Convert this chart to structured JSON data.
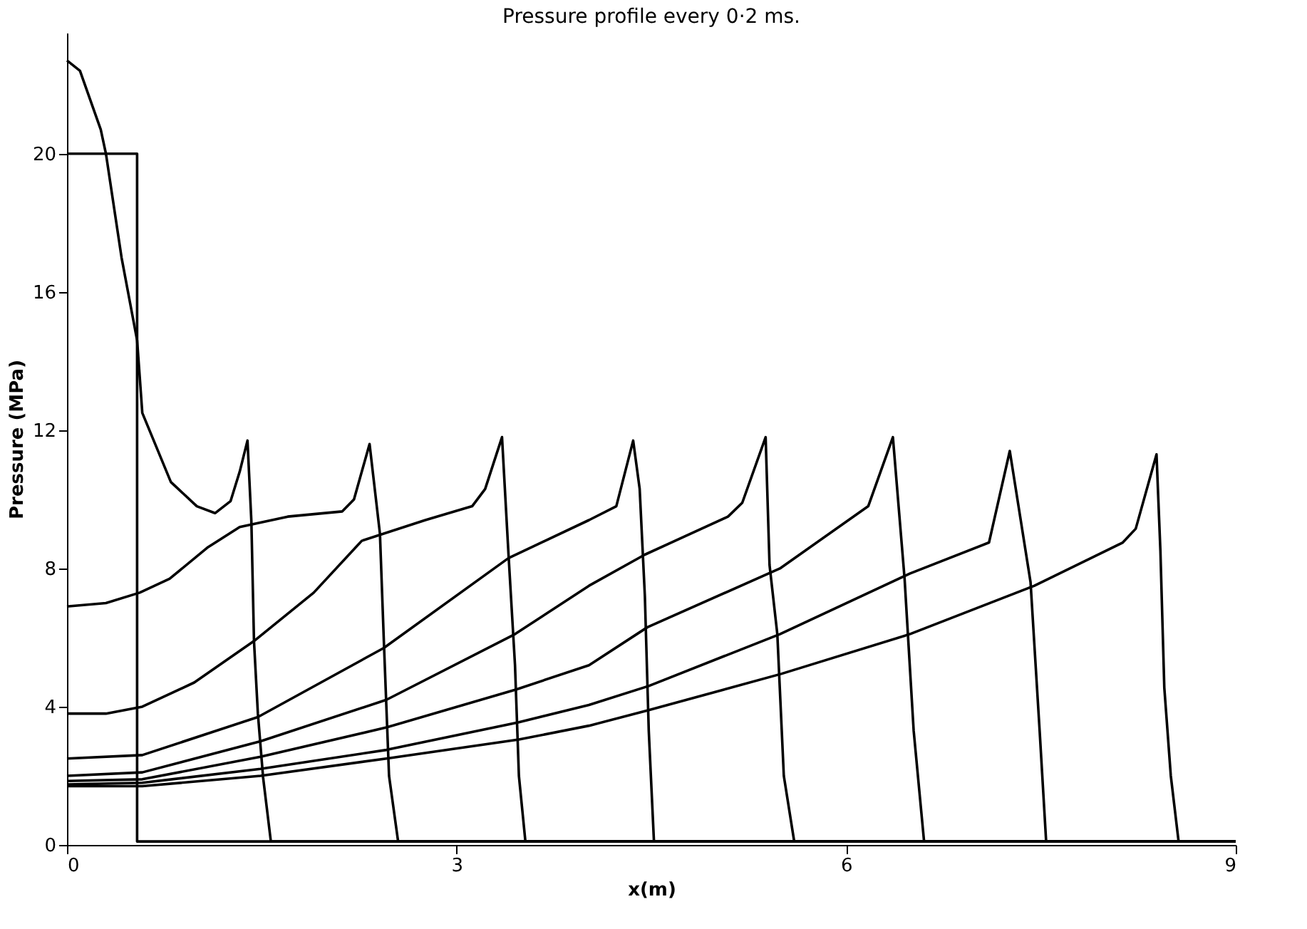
{
  "chart_data": {
    "type": "line",
    "title": "Pressure profile every 0·2 ms.",
    "xlabel": "x(m)",
    "ylabel": "Pressure (MPa)",
    "xlim": [
      0,
      9
    ],
    "ylim": [
      0,
      23.5
    ],
    "xticks": [
      0,
      3,
      6,
      9
    ],
    "yticks": [
      0,
      4,
      8,
      12,
      16,
      20
    ],
    "line_style": "solid",
    "marker": "none",
    "series": [
      {
        "color": "#000000",
        "x": [
          0,
          0.54,
          0.54,
          9
        ],
        "values": [
          20,
          20,
          0.1,
          0.1
        ]
      },
      {
        "color": "#000000",
        "x": [
          0,
          0.1,
          0.26,
          0.3,
          0.42,
          0.54,
          0.58,
          0.8,
          1.0,
          1.14,
          1.26,
          1.33,
          1.39,
          1.42,
          1.44,
          1.47,
          1.51,
          1.57,
          9
        ],
        "values": [
          22.7,
          22.4,
          20.7,
          20.0,
          17.0,
          14.6,
          12.5,
          10.5,
          9.8,
          9.6,
          9.95,
          10.8,
          11.7,
          9.35,
          5.9,
          3.8,
          1.96,
          0.1,
          0.1
        ]
      },
      {
        "color": "#000000",
        "x": [
          0,
          0.3,
          0.56,
          0.79,
          1.08,
          1.33,
          1.7,
          2.12,
          2.21,
          2.33,
          2.41,
          2.44,
          2.48,
          2.55,
          9
        ],
        "values": [
          6.9,
          7.0,
          7.3,
          7.7,
          8.6,
          9.2,
          9.5,
          9.65,
          10.0,
          11.6,
          9.0,
          5.9,
          2.0,
          0.1,
          0.1
        ]
      },
      {
        "color": "#000000",
        "x": [
          0,
          0.3,
          0.58,
          0.98,
          1.44,
          1.9,
          2.27,
          2.76,
          3.12,
          3.22,
          3.35,
          3.4,
          3.45,
          3.48,
          3.53,
          9
        ],
        "values": [
          3.8,
          3.8,
          4.0,
          4.7,
          5.9,
          7.3,
          8.8,
          9.4,
          9.8,
          10.3,
          11.8,
          8.4,
          5.2,
          2.0,
          0.1,
          0.1
        ]
      },
      {
        "color": "#000000",
        "x": [
          0,
          0.58,
          1.47,
          2.44,
          3.4,
          4.02,
          4.23,
          4.36,
          4.41,
          4.45,
          4.48,
          4.52,
          9
        ],
        "values": [
          2.5,
          2.6,
          3.7,
          5.7,
          8.3,
          9.4,
          9.8,
          11.7,
          10.3,
          7.2,
          3.3,
          0.1,
          0.1
        ]
      },
      {
        "color": "#000000",
        "x": [
          0,
          0.58,
          1.49,
          2.46,
          3.45,
          4.02,
          4.45,
          5.09,
          5.2,
          5.38,
          5.41,
          5.47,
          5.52,
          5.6,
          9
        ],
        "values": [
          2.0,
          2.1,
          3.0,
          4.2,
          6.1,
          7.5,
          8.4,
          9.5,
          9.9,
          11.8,
          8.1,
          6.1,
          2.0,
          0.1,
          0.1
        ]
      },
      {
        "color": "#000000",
        "x": [
          0,
          0.58,
          1.49,
          2.46,
          3.46,
          4.02,
          4.47,
          5.49,
          6.17,
          6.36,
          6.45,
          6.52,
          6.6,
          9
        ],
        "values": [
          1.85,
          1.9,
          2.55,
          3.4,
          4.5,
          5.2,
          6.3,
          8.0,
          9.8,
          11.8,
          7.7,
          3.3,
          0.1,
          0.1
        ]
      },
      {
        "color": "#000000",
        "x": [
          0,
          0.58,
          1.49,
          2.46,
          3.48,
          4.02,
          4.48,
          5.49,
          6.49,
          7.1,
          7.26,
          7.42,
          7.49,
          7.54,
          9
        ],
        "values": [
          1.75,
          1.8,
          2.2,
          2.75,
          3.55,
          4.05,
          4.6,
          6.1,
          7.85,
          8.75,
          11.4,
          7.6,
          3.3,
          0.1,
          0.1
        ]
      },
      {
        "color": "#000000",
        "x": [
          0,
          0.58,
          1.49,
          2.46,
          3.48,
          4.02,
          4.48,
          5.5,
          6.49,
          7.45,
          8.13,
          8.23,
          8.39,
          8.42,
          8.45,
          8.5,
          8.56,
          9
        ],
        "values": [
          1.7,
          1.7,
          2.0,
          2.5,
          3.05,
          3.45,
          3.9,
          4.95,
          6.1,
          7.5,
          8.75,
          9.15,
          11.3,
          8.5,
          4.55,
          2.0,
          0.1,
          0.1
        ]
      }
    ]
  }
}
